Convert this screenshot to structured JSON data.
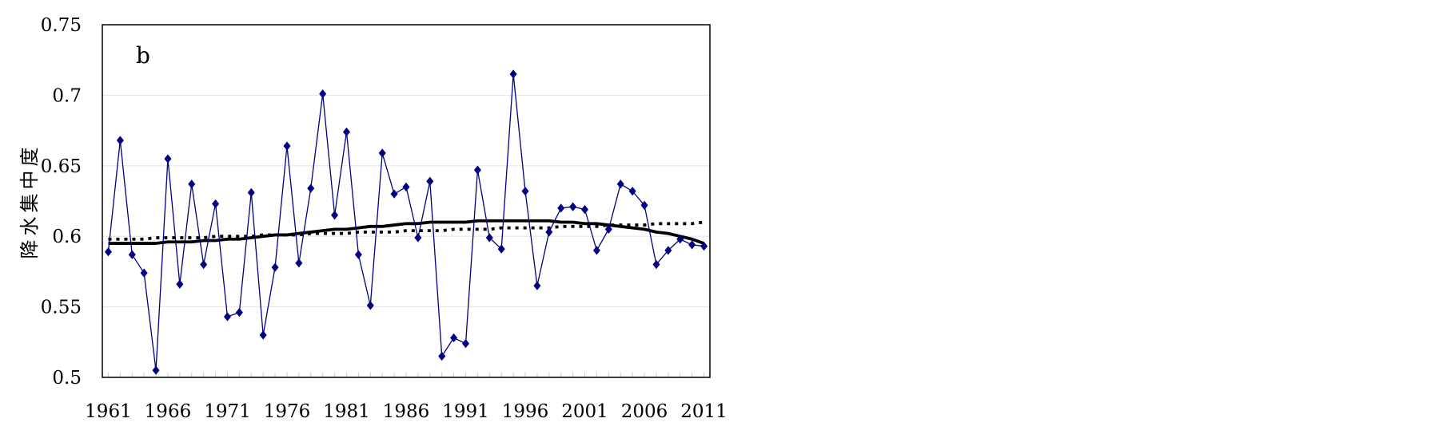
{
  "chart_data": {
    "type": "line",
    "panel_label": "b",
    "ylabel": "降水集中度",
    "xlabel": "",
    "ylim": [
      0.5,
      0.75
    ],
    "yticks": [
      "0.75",
      "0.7",
      "0.65",
      "0.6",
      "0.55",
      "0.5"
    ],
    "xlim": [
      1961,
      2011
    ],
    "xticks": [
      "1961",
      "1966",
      "1971",
      "1976",
      "1981",
      "1986",
      "1991",
      "1996",
      "2001",
      "2006",
      "2011"
    ],
    "grid": true,
    "legend": "none",
    "x": [
      1961,
      1962,
      1963,
      1964,
      1965,
      1966,
      1967,
      1968,
      1969,
      1970,
      1971,
      1972,
      1973,
      1974,
      1975,
      1976,
      1977,
      1978,
      1979,
      1980,
      1981,
      1982,
      1983,
      1984,
      1985,
      1986,
      1987,
      1988,
      1989,
      1990,
      1991,
      1992,
      1993,
      1994,
      1995,
      1996,
      1997,
      1998,
      1999,
      2000,
      2001,
      2002,
      2003,
      2004,
      2005,
      2006,
      2007,
      2008,
      2009,
      2010,
      2011
    ],
    "series": [
      {
        "style": "line-diamond",
        "color": "#000080",
        "values": [
          0.589,
          0.668,
          0.587,
          0.574,
          0.505,
          0.655,
          0.566,
          0.637,
          0.58,
          0.623,
          0.543,
          0.546,
          0.631,
          0.53,
          0.578,
          0.664,
          0.581,
          0.634,
          0.701,
          0.615,
          0.674,
          0.587,
          0.551,
          0.659,
          0.63,
          0.635,
          0.599,
          0.639,
          0.515,
          0.528,
          0.524,
          0.647,
          0.599,
          0.591,
          0.715,
          0.632,
          0.565,
          0.603,
          0.62,
          0.621,
          0.619,
          0.59,
          0.605,
          0.637,
          0.632,
          0.622,
          0.58,
          0.59,
          0.598,
          0.594,
          0.593
        ]
      },
      {
        "style": "solid-thick",
        "color": "#000000",
        "values": [
          0.595,
          0.595,
          0.595,
          0.595,
          0.595,
          0.596,
          0.596,
          0.596,
          0.597,
          0.597,
          0.598,
          0.598,
          0.599,
          0.6,
          0.601,
          0.601,
          0.602,
          0.603,
          0.604,
          0.605,
          0.605,
          0.606,
          0.607,
          0.607,
          0.608,
          0.609,
          0.609,
          0.61,
          0.61,
          0.61,
          0.61,
          0.611,
          0.611,
          0.611,
          0.611,
          0.611,
          0.611,
          0.611,
          0.61,
          0.61,
          0.609,
          0.609,
          0.608,
          0.607,
          0.606,
          0.605,
          0.603,
          0.602,
          0.6,
          0.598,
          0.595
        ]
      },
      {
        "style": "dotted",
        "color": "#000000",
        "values": [
          0.598,
          0.598,
          0.598,
          0.598,
          0.599,
          0.599,
          0.599,
          0.599,
          0.599,
          0.6,
          0.6,
          0.6,
          0.6,
          0.601,
          0.601,
          0.601,
          0.601,
          0.602,
          0.602,
          0.602,
          0.602,
          0.603,
          0.603,
          0.603,
          0.603,
          0.604,
          0.604,
          0.604,
          0.604,
          0.605,
          0.605,
          0.605,
          0.605,
          0.606,
          0.606,
          0.606,
          0.606,
          0.606,
          0.607,
          0.607,
          0.607,
          0.607,
          0.608,
          0.608,
          0.608,
          0.608,
          0.609,
          0.609,
          0.609,
          0.609,
          0.61
        ]
      }
    ]
  }
}
